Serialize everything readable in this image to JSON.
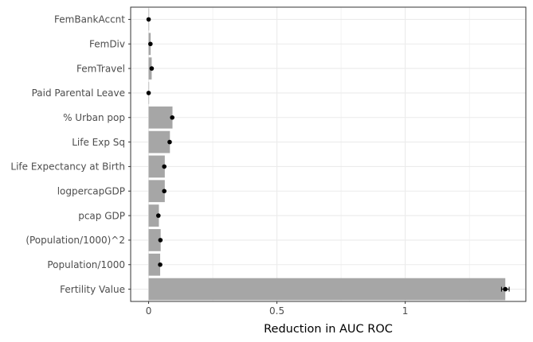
{
  "chart_data": {
    "type": "bar",
    "orientation": "horizontal",
    "title": "",
    "xlabel": "Reduction in AUC ROC",
    "ylabel": "",
    "xlim": [
      -0.07,
      1.47
    ],
    "xticks": [
      0,
      0.5,
      1
    ],
    "xtick_labels": [
      "0",
      "0.5",
      "1"
    ],
    "grid": true,
    "legend": "none",
    "categories": [
      "FemBankAccnt",
      "FemDiv",
      "FemTravel",
      "Paid Parental Leave",
      "% Urban pop",
      "Life Exp Sq",
      "Life Expectancy at Birth",
      "logpercapGDP",
      "pcap GDP",
      "(Population/1000)^2",
      "Population/1000",
      "Fertility Value"
    ],
    "series": [
      {
        "values": [
          0.002,
          0.008,
          0.012,
          0.001,
          0.093,
          0.083,
          0.063,
          0.063,
          0.04,
          0.047,
          0.045,
          1.39
        ],
        "points": [
          0.0,
          0.007,
          0.012,
          0.0,
          0.092,
          0.082,
          0.061,
          0.061,
          0.038,
          0.046,
          0.045,
          1.39
        ],
        "errors": [
          0,
          0,
          0,
          0,
          0,
          0,
          0,
          0,
          0,
          0,
          0,
          0.015
        ]
      }
    ],
    "colors": {
      "bar": "#a6a6a6",
      "point": "#000000",
      "grid": "#ebebeb",
      "panel_border": "#333333"
    }
  }
}
